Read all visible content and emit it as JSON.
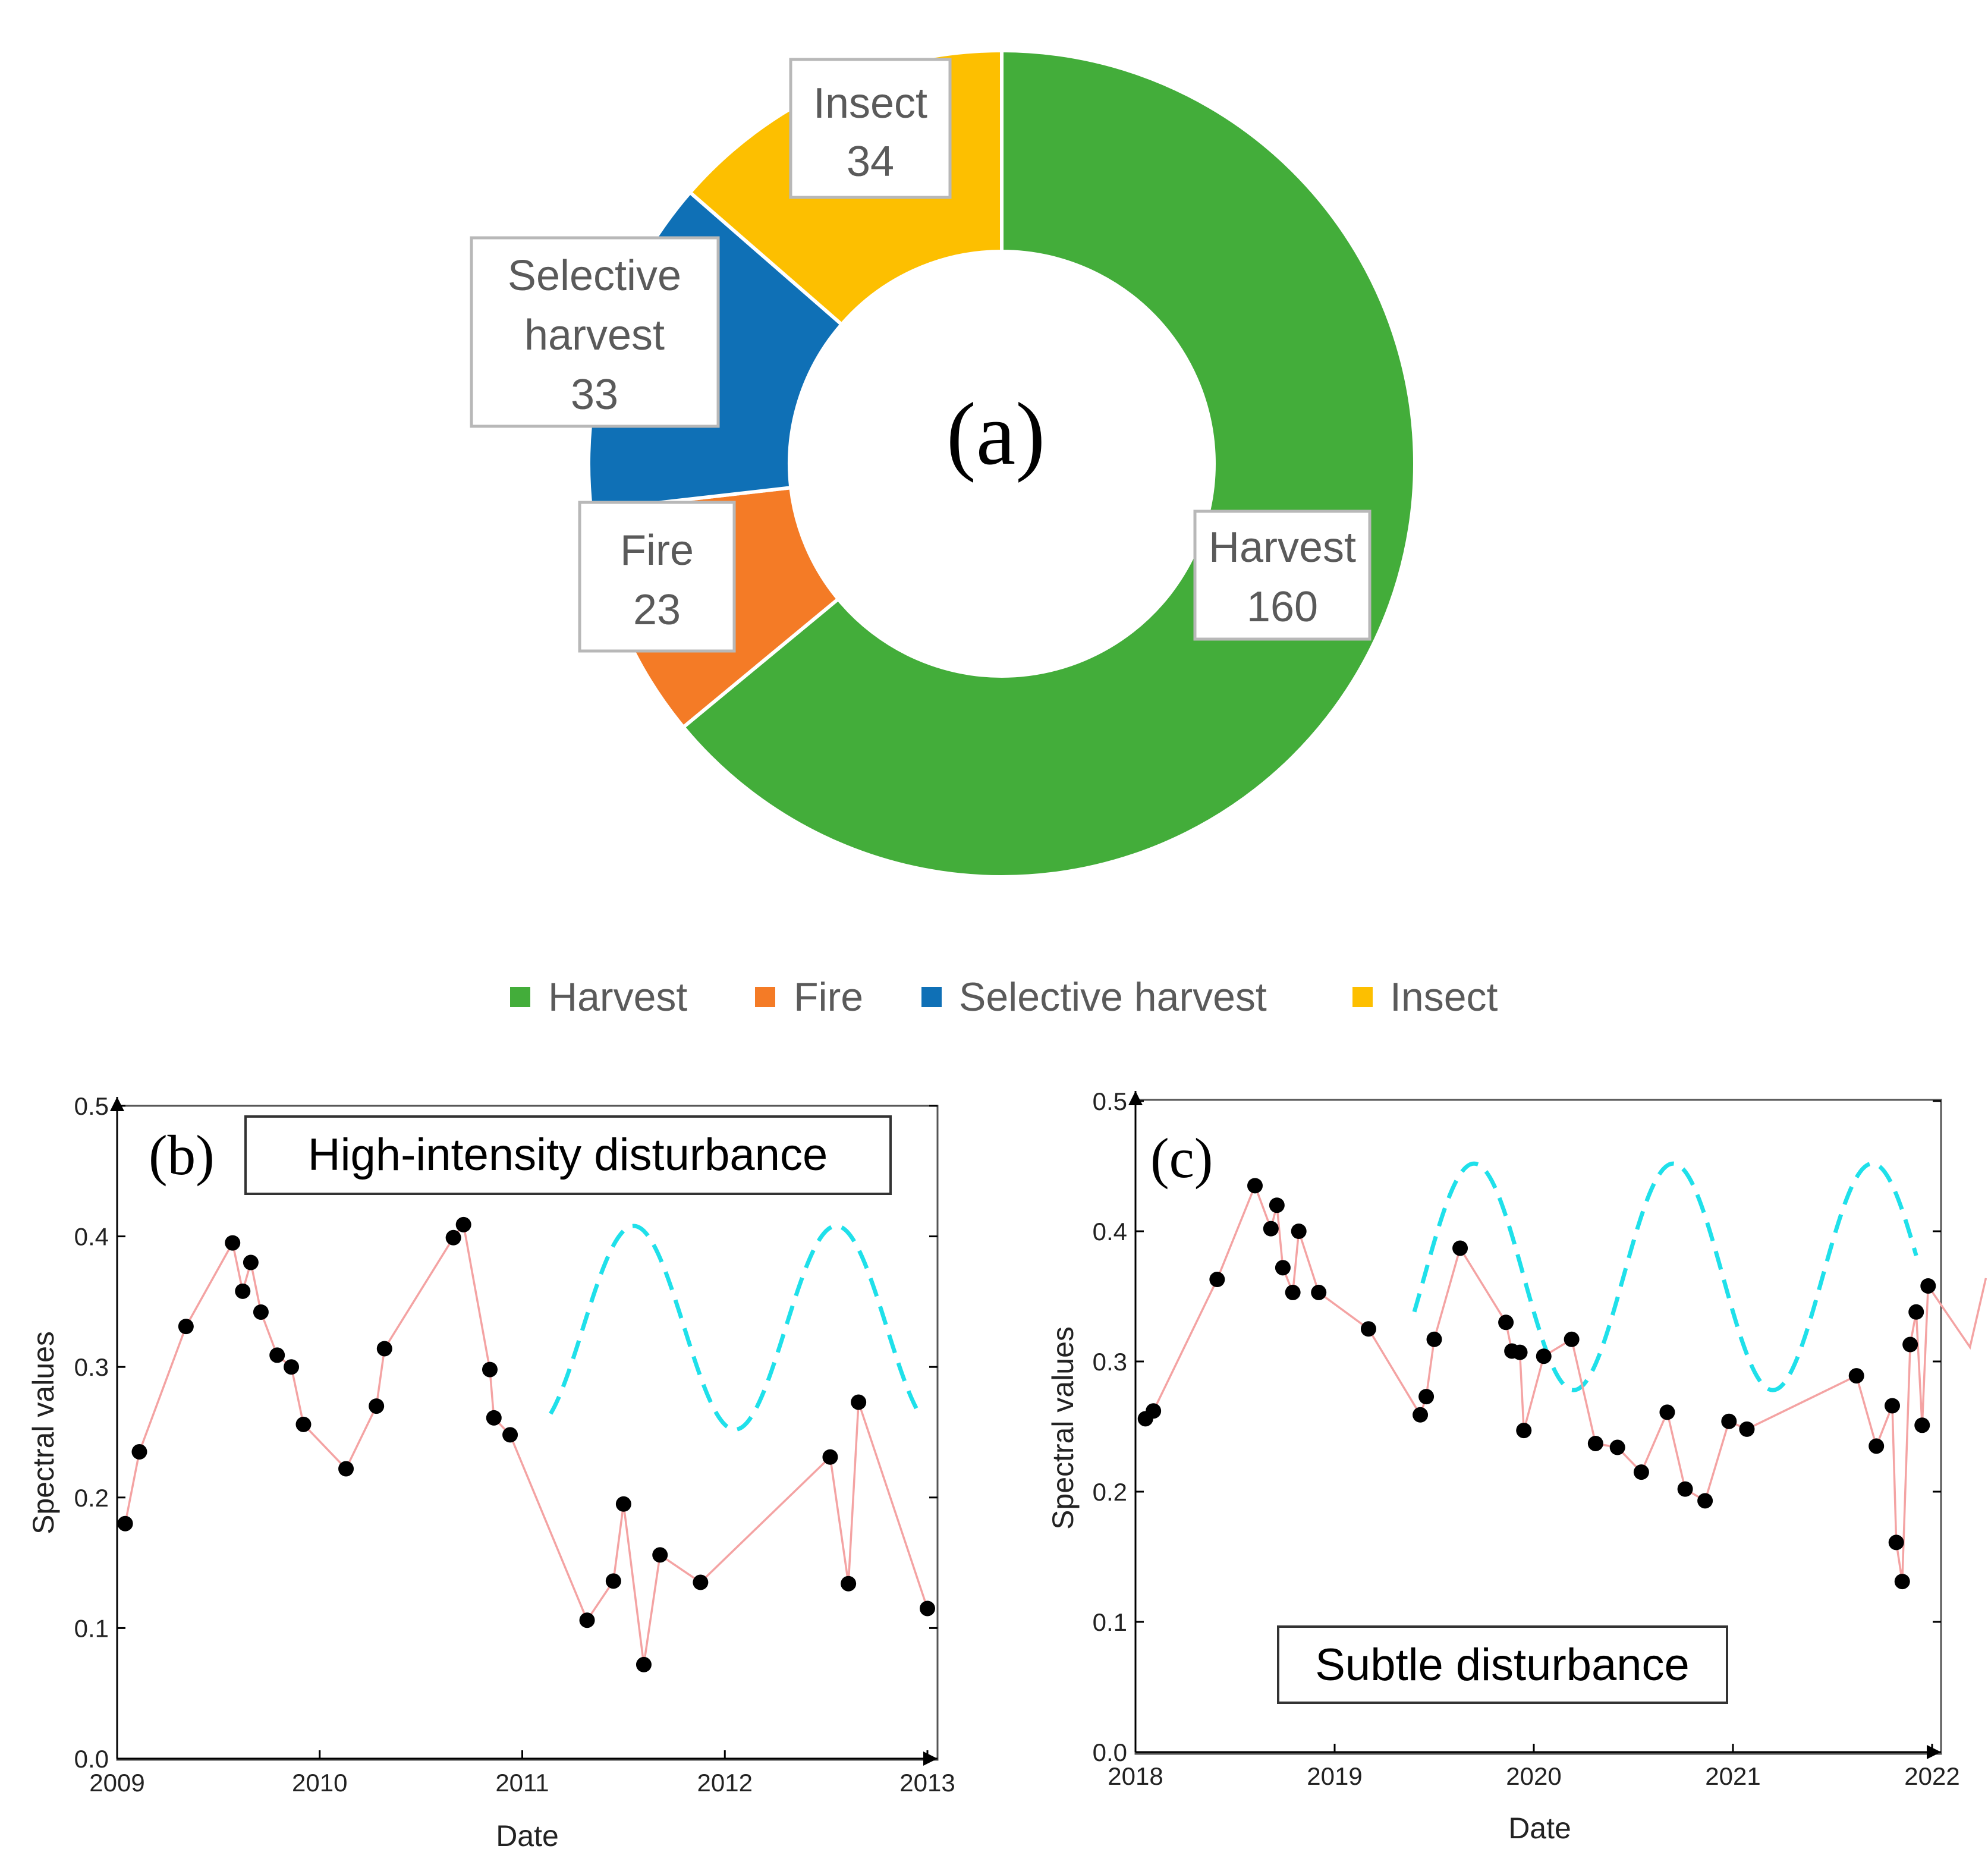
{
  "colors": {
    "harvest": "#43ad3a",
    "fire": "#f47b26",
    "selective": "#0f70b6",
    "insect": "#fdbf00",
    "series_line": "#f4a3a3",
    "points": "#000000",
    "fit": "#1fe0ea"
  },
  "chart_data": [
    {
      "id": "a",
      "type": "pie",
      "panel_label": "(a)",
      "title": "",
      "slices": [
        {
          "key": "harvest",
          "label": "Harvest",
          "value": 160
        },
        {
          "key": "fire",
          "label": "Fire",
          "value": 23
        },
        {
          "key": "selective",
          "label": "Selective harvest",
          "label_lines": [
            "Selective",
            "harvest"
          ],
          "value": 33
        },
        {
          "key": "insect",
          "label": "Insect",
          "value": 34
        }
      ],
      "legend": {
        "position": "bottom",
        "entries": [
          "Harvest",
          "Fire",
          "Selective harvest",
          "Insect"
        ]
      }
    },
    {
      "id": "b",
      "type": "line",
      "panel_label": "(b)",
      "title": "High-intensity disturbance",
      "xlabel": "Date",
      "ylabel": "Spectral values",
      "xlim": [
        2009,
        2013
      ],
      "ylim": [
        0,
        0.5
      ],
      "xticks": [
        2009,
        2010,
        2011,
        2012,
        2013
      ],
      "yticks": [
        "0.0",
        "0.1",
        "0.2",
        "0.3",
        "0.4",
        "0.5"
      ],
      "series": [
        {
          "name": "observations",
          "style": "points+line",
          "x": [
            2009.04,
            2009.11,
            2009.34,
            2009.57,
            2009.62,
            2009.66,
            2009.71,
            2009.79,
            2009.86,
            2009.92,
            2010.13,
            2010.28,
            2010.32,
            2010.66,
            2010.71,
            2010.84,
            2010.86,
            2010.94,
            2011.32,
            2011.45,
            2011.5,
            2011.6,
            2011.68,
            2011.88,
            2012.52,
            2012.61,
            2012.66,
            2013.0
          ],
          "y": [
            0.18,
            0.235,
            0.331,
            0.395,
            0.358,
            0.38,
            0.342,
            0.309,
            0.3,
            0.256,
            0.222,
            0.27,
            0.314,
            0.399,
            0.409,
            0.298,
            0.261,
            0.248,
            0.106,
            0.136,
            0.195,
            0.072,
            0.156,
            0.135,
            0.231,
            0.134,
            0.273,
            0.115
          ]
        },
        {
          "name": "seasonal fit",
          "style": "dashed",
          "x_range": [
            2011.14,
            2012.95
          ],
          "center": 0.33,
          "amplitude": 0.078,
          "period": 1,
          "peak": 2011.55
        }
      ]
    },
    {
      "id": "c",
      "type": "line",
      "panel_label": "(c)",
      "title": "Subtle disturbance",
      "xlabel": "Date",
      "ylabel": "Spectral values",
      "xlim": [
        2018,
        2022
      ],
      "ylim": [
        0,
        0.5
      ],
      "xticks": [
        2018,
        2019,
        2020,
        2021,
        2022
      ],
      "yticks": [
        "0.0",
        "0.1",
        "0.2",
        "0.3",
        "0.4",
        "0.5"
      ],
      "series": [
        {
          "name": "observations",
          "style": "points+line",
          "x": [
            2018.05,
            2018.09,
            2018.41,
            2018.6,
            2018.68,
            2018.71,
            2018.74,
            2018.79,
            2018.82,
            2018.92,
            2019.17,
            2019.43,
            2019.46,
            2019.5,
            2019.63,
            2019.86,
            2019.89,
            2019.93,
            2019.95,
            2020.05,
            2020.19,
            2020.31,
            2020.42,
            2020.54,
            2020.67,
            2020.76,
            2020.86,
            2020.98,
            2021.07,
            2021.62,
            2021.72,
            2021.8,
            2021.82,
            2021.85,
            2021.89,
            2021.92,
            2021.95,
            2021.98,
            2022.19,
            2022.27
          ],
          "y": [
            0.256,
            0.262,
            0.363,
            0.435,
            0.402,
            0.42,
            0.372,
            0.353,
            0.4,
            0.353,
            0.325,
            0.259,
            0.273,
            0.317,
            0.387,
            0.33,
            0.308,
            0.307,
            0.247,
            0.304,
            0.317,
            0.237,
            0.234,
            0.215,
            0.261,
            0.202,
            0.193,
            0.254,
            0.248,
            0.289,
            0.235,
            0.266,
            0.161,
            0.131,
            0.313,
            0.338,
            0.251,
            0.358,
            0.311,
            0.364
          ]
        },
        {
          "name": "seasonal fit",
          "style": "dashed",
          "x_range": [
            2019.4,
            2021.92
          ],
          "center": 0.365,
          "amplitude": 0.087,
          "period": 1,
          "peak": 2019.7
        }
      ]
    }
  ]
}
